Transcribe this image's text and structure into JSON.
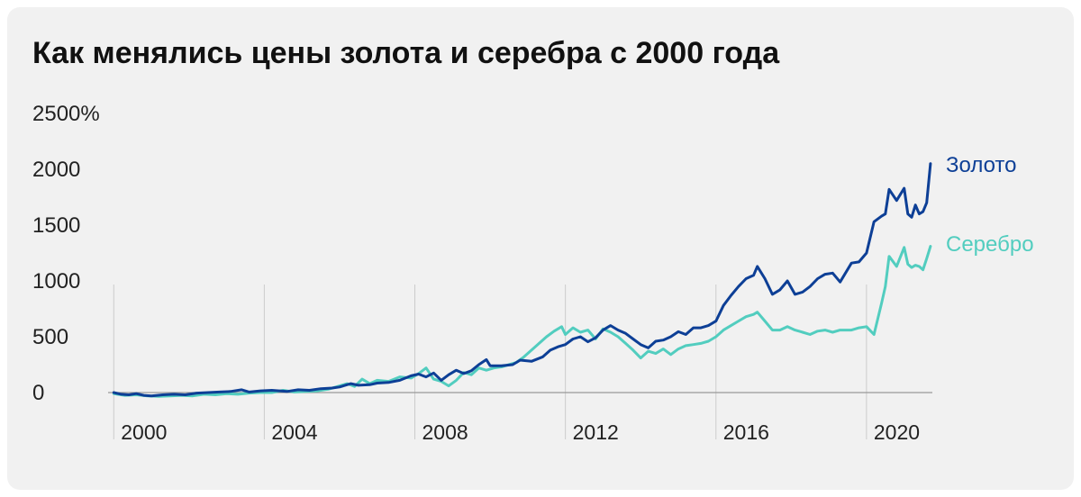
{
  "title": "Как менялись цены золота и серебра с 2000 года",
  "colors": {
    "gold": "#0d3f96",
    "silver": "#52cdbf",
    "grid": "#cccccc",
    "axis": "#999999",
    "text": "#222222"
  },
  "chart_data": {
    "type": "line",
    "title": "Как менялись цены золота и серебра с 2000 года",
    "xlabel": "",
    "ylabel": "",
    "xlim": [
      1999.85,
      2021.75
    ],
    "ylim": [
      0,
      2500
    ],
    "y_ticks": [
      {
        "value": 0,
        "label": "0"
      },
      {
        "value": 500,
        "label": "500"
      },
      {
        "value": 1000,
        "label": "1000"
      },
      {
        "value": 1500,
        "label": "1500"
      },
      {
        "value": 2000,
        "label": "2000"
      },
      {
        "value": 2500,
        "label": "2500%"
      }
    ],
    "x_ticks": [
      {
        "value": 2000,
        "label": "2000"
      },
      {
        "value": 2004,
        "label": "2004"
      },
      {
        "value": 2008,
        "label": "2008"
      },
      {
        "value": 2012,
        "label": "2012"
      },
      {
        "value": 2016,
        "label": "2016"
      },
      {
        "value": 2020,
        "label": "2020"
      }
    ],
    "grid": "vertical",
    "series": [
      {
        "name": "Золото",
        "color": "#0d3f96",
        "points": [
          [
            2000.0,
            0
          ],
          [
            2000.2,
            -15
          ],
          [
            2000.4,
            -20
          ],
          [
            2000.6,
            -10
          ],
          [
            2000.8,
            -25
          ],
          [
            2001.0,
            -30
          ],
          [
            2001.3,
            -20
          ],
          [
            2001.6,
            -15
          ],
          [
            2001.9,
            -20
          ],
          [
            2002.2,
            -5
          ],
          [
            2002.5,
            0
          ],
          [
            2002.8,
            5
          ],
          [
            2003.1,
            10
          ],
          [
            2003.4,
            25
          ],
          [
            2003.6,
            5
          ],
          [
            2003.9,
            15
          ],
          [
            2004.2,
            20
          ],
          [
            2004.6,
            10
          ],
          [
            2004.9,
            25
          ],
          [
            2005.2,
            20
          ],
          [
            2005.5,
            35
          ],
          [
            2005.8,
            40
          ],
          [
            2006.0,
            50
          ],
          [
            2006.3,
            80
          ],
          [
            2006.5,
            65
          ],
          [
            2006.8,
            70
          ],
          [
            2007.0,
            85
          ],
          [
            2007.3,
            90
          ],
          [
            2007.6,
            110
          ],
          [
            2007.9,
            150
          ],
          [
            2008.1,
            165
          ],
          [
            2008.3,
            140
          ],
          [
            2008.5,
            175
          ],
          [
            2008.7,
            110
          ],
          [
            2008.9,
            160
          ],
          [
            2009.1,
            200
          ],
          [
            2009.3,
            170
          ],
          [
            2009.5,
            195
          ],
          [
            2009.7,
            250
          ],
          [
            2009.9,
            295
          ],
          [
            2010.0,
            240
          ],
          [
            2010.3,
            240
          ],
          [
            2010.6,
            250
          ],
          [
            2010.8,
            290
          ],
          [
            2011.1,
            280
          ],
          [
            2011.4,
            320
          ],
          [
            2011.6,
            380
          ],
          [
            2011.8,
            410
          ],
          [
            2012.0,
            430
          ],
          [
            2012.2,
            480
          ],
          [
            2012.4,
            500
          ],
          [
            2012.6,
            455
          ],
          [
            2012.8,
            490
          ],
          [
            2013.0,
            560
          ],
          [
            2013.2,
            600
          ],
          [
            2013.4,
            560
          ],
          [
            2013.6,
            530
          ],
          [
            2013.8,
            480
          ],
          [
            2014.0,
            430
          ],
          [
            2014.2,
            400
          ],
          [
            2014.4,
            460
          ],
          [
            2014.6,
            470
          ],
          [
            2014.8,
            500
          ],
          [
            2015.0,
            545
          ],
          [
            2015.2,
            520
          ],
          [
            2015.4,
            580
          ],
          [
            2015.6,
            580
          ],
          [
            2015.8,
            600
          ],
          [
            2016.0,
            640
          ],
          [
            2016.2,
            780
          ],
          [
            2016.4,
            870
          ],
          [
            2016.6,
            950
          ],
          [
            2016.8,
            1020
          ],
          [
            2017.0,
            1050
          ],
          [
            2017.1,
            1130
          ],
          [
            2017.3,
            1020
          ],
          [
            2017.5,
            880
          ],
          [
            2017.7,
            920
          ],
          [
            2017.9,
            1000
          ],
          [
            2018.1,
            880
          ],
          [
            2018.3,
            900
          ],
          [
            2018.5,
            950
          ],
          [
            2018.7,
            1020
          ],
          [
            2018.9,
            1060
          ],
          [
            2019.1,
            1070
          ],
          [
            2019.3,
            990
          ],
          [
            2019.6,
            1160
          ],
          [
            2019.8,
            1170
          ],
          [
            2020.0,
            1250
          ],
          [
            2020.2,
            1530
          ],
          [
            2020.4,
            1580
          ],
          [
            2020.5,
            1600
          ],
          [
            2020.6,
            1820
          ],
          [
            2020.8,
            1720
          ],
          [
            2021.0,
            1830
          ],
          [
            2021.1,
            1600
          ],
          [
            2021.2,
            1570
          ],
          [
            2021.3,
            1680
          ],
          [
            2021.4,
            1600
          ],
          [
            2021.5,
            1620
          ],
          [
            2021.6,
            1700
          ],
          [
            2021.7,
            2050
          ]
        ]
      },
      {
        "name": "Серебро",
        "color": "#52cdbf",
        "points": [
          [
            2000.0,
            -10
          ],
          [
            2000.3,
            -25
          ],
          [
            2000.6,
            -20
          ],
          [
            2000.9,
            -30
          ],
          [
            2001.2,
            -35
          ],
          [
            2001.5,
            -30
          ],
          [
            2001.8,
            -25
          ],
          [
            2002.1,
            -30
          ],
          [
            2002.4,
            -15
          ],
          [
            2002.7,
            -20
          ],
          [
            2003.0,
            -10
          ],
          [
            2003.3,
            -15
          ],
          [
            2003.6,
            -5
          ],
          [
            2003.9,
            0
          ],
          [
            2004.2,
            0
          ],
          [
            2004.5,
            20
          ],
          [
            2004.8,
            5
          ],
          [
            2005.1,
            10
          ],
          [
            2005.4,
            15
          ],
          [
            2005.7,
            30
          ],
          [
            2006.0,
            60
          ],
          [
            2006.2,
            80
          ],
          [
            2006.4,
            55
          ],
          [
            2006.6,
            120
          ],
          [
            2006.8,
            80
          ],
          [
            2007.0,
            110
          ],
          [
            2007.3,
            100
          ],
          [
            2007.6,
            140
          ],
          [
            2007.9,
            130
          ],
          [
            2008.1,
            170
          ],
          [
            2008.3,
            220
          ],
          [
            2008.5,
            120
          ],
          [
            2008.7,
            100
          ],
          [
            2008.9,
            60
          ],
          [
            2009.1,
            110
          ],
          [
            2009.3,
            180
          ],
          [
            2009.5,
            160
          ],
          [
            2009.7,
            220
          ],
          [
            2009.9,
            200
          ],
          [
            2010.1,
            220
          ],
          [
            2010.3,
            230
          ],
          [
            2010.5,
            250
          ],
          [
            2010.7,
            270
          ],
          [
            2010.9,
            320
          ],
          [
            2011.1,
            380
          ],
          [
            2011.3,
            440
          ],
          [
            2011.5,
            500
          ],
          [
            2011.7,
            550
          ],
          [
            2011.9,
            590
          ],
          [
            2012.0,
            520
          ],
          [
            2012.2,
            580
          ],
          [
            2012.4,
            540
          ],
          [
            2012.6,
            560
          ],
          [
            2012.8,
            480
          ],
          [
            2013.0,
            570
          ],
          [
            2013.2,
            540
          ],
          [
            2013.4,
            500
          ],
          [
            2013.6,
            440
          ],
          [
            2013.8,
            380
          ],
          [
            2014.0,
            310
          ],
          [
            2014.2,
            370
          ],
          [
            2014.4,
            350
          ],
          [
            2014.6,
            390
          ],
          [
            2014.8,
            340
          ],
          [
            2015.0,
            390
          ],
          [
            2015.2,
            420
          ],
          [
            2015.4,
            430
          ],
          [
            2015.6,
            440
          ],
          [
            2015.8,
            460
          ],
          [
            2016.0,
            500
          ],
          [
            2016.2,
            560
          ],
          [
            2016.4,
            600
          ],
          [
            2016.6,
            640
          ],
          [
            2016.8,
            680
          ],
          [
            2017.0,
            700
          ],
          [
            2017.1,
            720
          ],
          [
            2017.3,
            640
          ],
          [
            2017.5,
            560
          ],
          [
            2017.7,
            560
          ],
          [
            2017.9,
            590
          ],
          [
            2018.1,
            560
          ],
          [
            2018.3,
            540
          ],
          [
            2018.5,
            520
          ],
          [
            2018.7,
            550
          ],
          [
            2018.9,
            560
          ],
          [
            2019.1,
            540
          ],
          [
            2019.3,
            560
          ],
          [
            2019.6,
            560
          ],
          [
            2019.8,
            580
          ],
          [
            2020.0,
            590
          ],
          [
            2020.2,
            520
          ],
          [
            2020.4,
            800
          ],
          [
            2020.5,
            950
          ],
          [
            2020.6,
            1220
          ],
          [
            2020.8,
            1130
          ],
          [
            2021.0,
            1300
          ],
          [
            2021.1,
            1150
          ],
          [
            2021.2,
            1120
          ],
          [
            2021.3,
            1140
          ],
          [
            2021.4,
            1130
          ],
          [
            2021.5,
            1100
          ],
          [
            2021.6,
            1200
          ],
          [
            2021.7,
            1310
          ]
        ]
      }
    ]
  }
}
